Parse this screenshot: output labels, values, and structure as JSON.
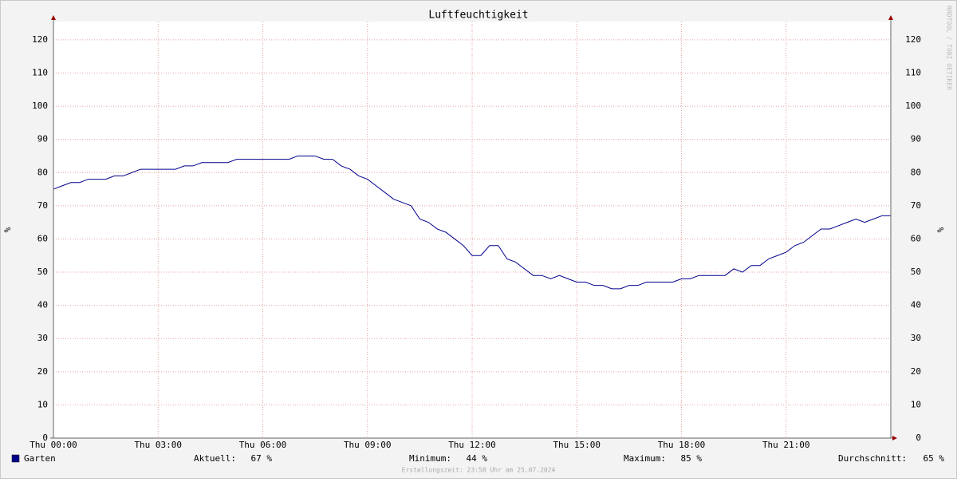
{
  "chart_data": {
    "type": "line",
    "title": "Luftfeuchtigkeit",
    "y_label": "%",
    "watermark": "RRDTOOL / TOBI OETIKER",
    "footer": "Erstellungszeit: 23:58 Uhr am 25.07.2024",
    "x": [
      0,
      0.25,
      0.5,
      0.75,
      1,
      1.25,
      1.5,
      1.75,
      2,
      2.25,
      2.5,
      2.75,
      3,
      3.25,
      3.5,
      3.75,
      4,
      4.25,
      4.5,
      4.75,
      5,
      5.25,
      5.5,
      5.75,
      6,
      6.25,
      6.5,
      6.75,
      7,
      7.25,
      7.5,
      7.75,
      8,
      8.25,
      8.5,
      8.75,
      9,
      9.25,
      9.5,
      9.75,
      10,
      10.25,
      10.5,
      10.75,
      11,
      11.25,
      11.5,
      11.75,
      12,
      12.25,
      12.5,
      12.75,
      13,
      13.25,
      13.5,
      13.75,
      14,
      14.25,
      14.5,
      14.75,
      15,
      15.25,
      15.5,
      15.75,
      16,
      16.25,
      16.5,
      16.75,
      17,
      17.25,
      17.5,
      17.75,
      18,
      18.25,
      18.5,
      18.75,
      19,
      19.25,
      19.5,
      19.75,
      20,
      20.25,
      20.5,
      20.75,
      21,
      21.25,
      21.5,
      21.75,
      22,
      22.25,
      22.5,
      22.75,
      23,
      23.25,
      23.5,
      23.75,
      24
    ],
    "series": [
      {
        "name": "Garten",
        "color": "#00008b",
        "values": [
          75,
          76,
          77,
          77,
          78,
          78,
          78,
          79,
          79,
          80,
          81,
          81,
          81,
          81,
          81,
          82,
          82,
          83,
          83,
          83,
          83,
          84,
          84,
          84,
          84,
          84,
          84,
          84,
          85,
          85,
          85,
          84,
          84,
          82,
          81,
          79,
          78,
          76,
          74,
          72,
          71,
          70,
          66,
          65,
          63,
          62,
          60,
          58,
          55,
          55,
          58,
          58,
          54,
          53,
          51,
          49,
          49,
          48,
          49,
          48,
          47,
          47,
          46,
          46,
          45,
          45,
          46,
          46,
          47,
          47,
          47,
          47,
          48,
          48,
          49,
          49,
          49,
          49,
          51,
          50,
          52,
          52,
          54,
          55,
          56,
          58,
          59,
          61,
          63,
          63,
          64,
          65,
          66,
          65,
          66,
          67,
          67
        ]
      }
    ],
    "stats": [
      {
        "name": "Aktuell:",
        "value": "67 %"
      },
      {
        "name": "Minimum:",
        "value": "44 %"
      },
      {
        "name": "Maximum:",
        "value": "85 %"
      },
      {
        "name": "Durchschnitt:",
        "value": "65 %"
      }
    ],
    "xlim": [
      0,
      24
    ],
    "xticks": [
      {
        "value": 0,
        "label": "Thu 00:00"
      },
      {
        "value": 3,
        "label": "Thu 03:00"
      },
      {
        "value": 6,
        "label": "Thu 06:00"
      },
      {
        "value": 9,
        "label": "Thu 09:00"
      },
      {
        "value": 12,
        "label": "Thu 12:00"
      },
      {
        "value": 15,
        "label": "Thu 15:00"
      },
      {
        "value": 18,
        "label": "Thu 18:00"
      },
      {
        "value": 21,
        "label": "Thu 21:00"
      }
    ],
    "ylim": [
      0,
      125.5
    ],
    "yticks": [
      0,
      10,
      20,
      30,
      40,
      50,
      60,
      70,
      80,
      90,
      100,
      110,
      120
    ],
    "grid": true
  }
}
